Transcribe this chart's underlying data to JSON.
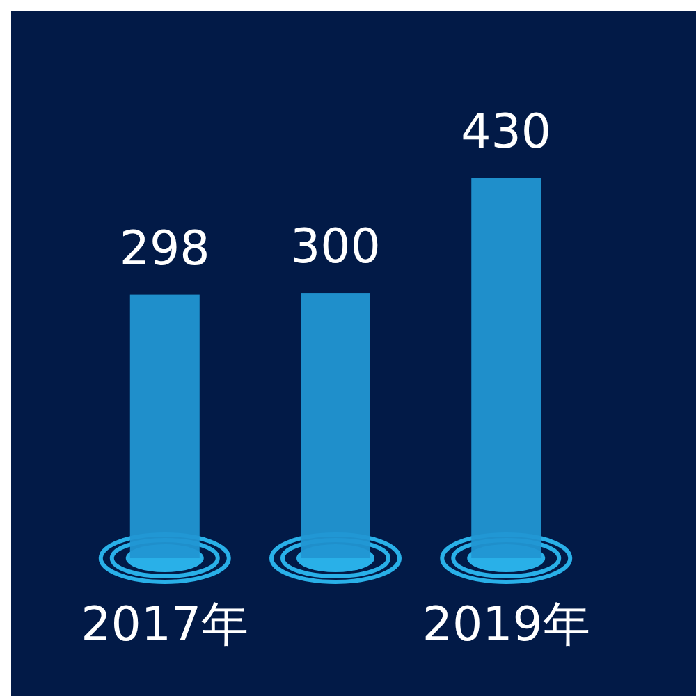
{
  "chart_data": {
    "type": "bar",
    "categories": [
      "2017年",
      null,
      "2019年"
    ],
    "values": [
      298,
      300,
      430
    ],
    "color": "#2196d3",
    "data_labels": true
  }
}
